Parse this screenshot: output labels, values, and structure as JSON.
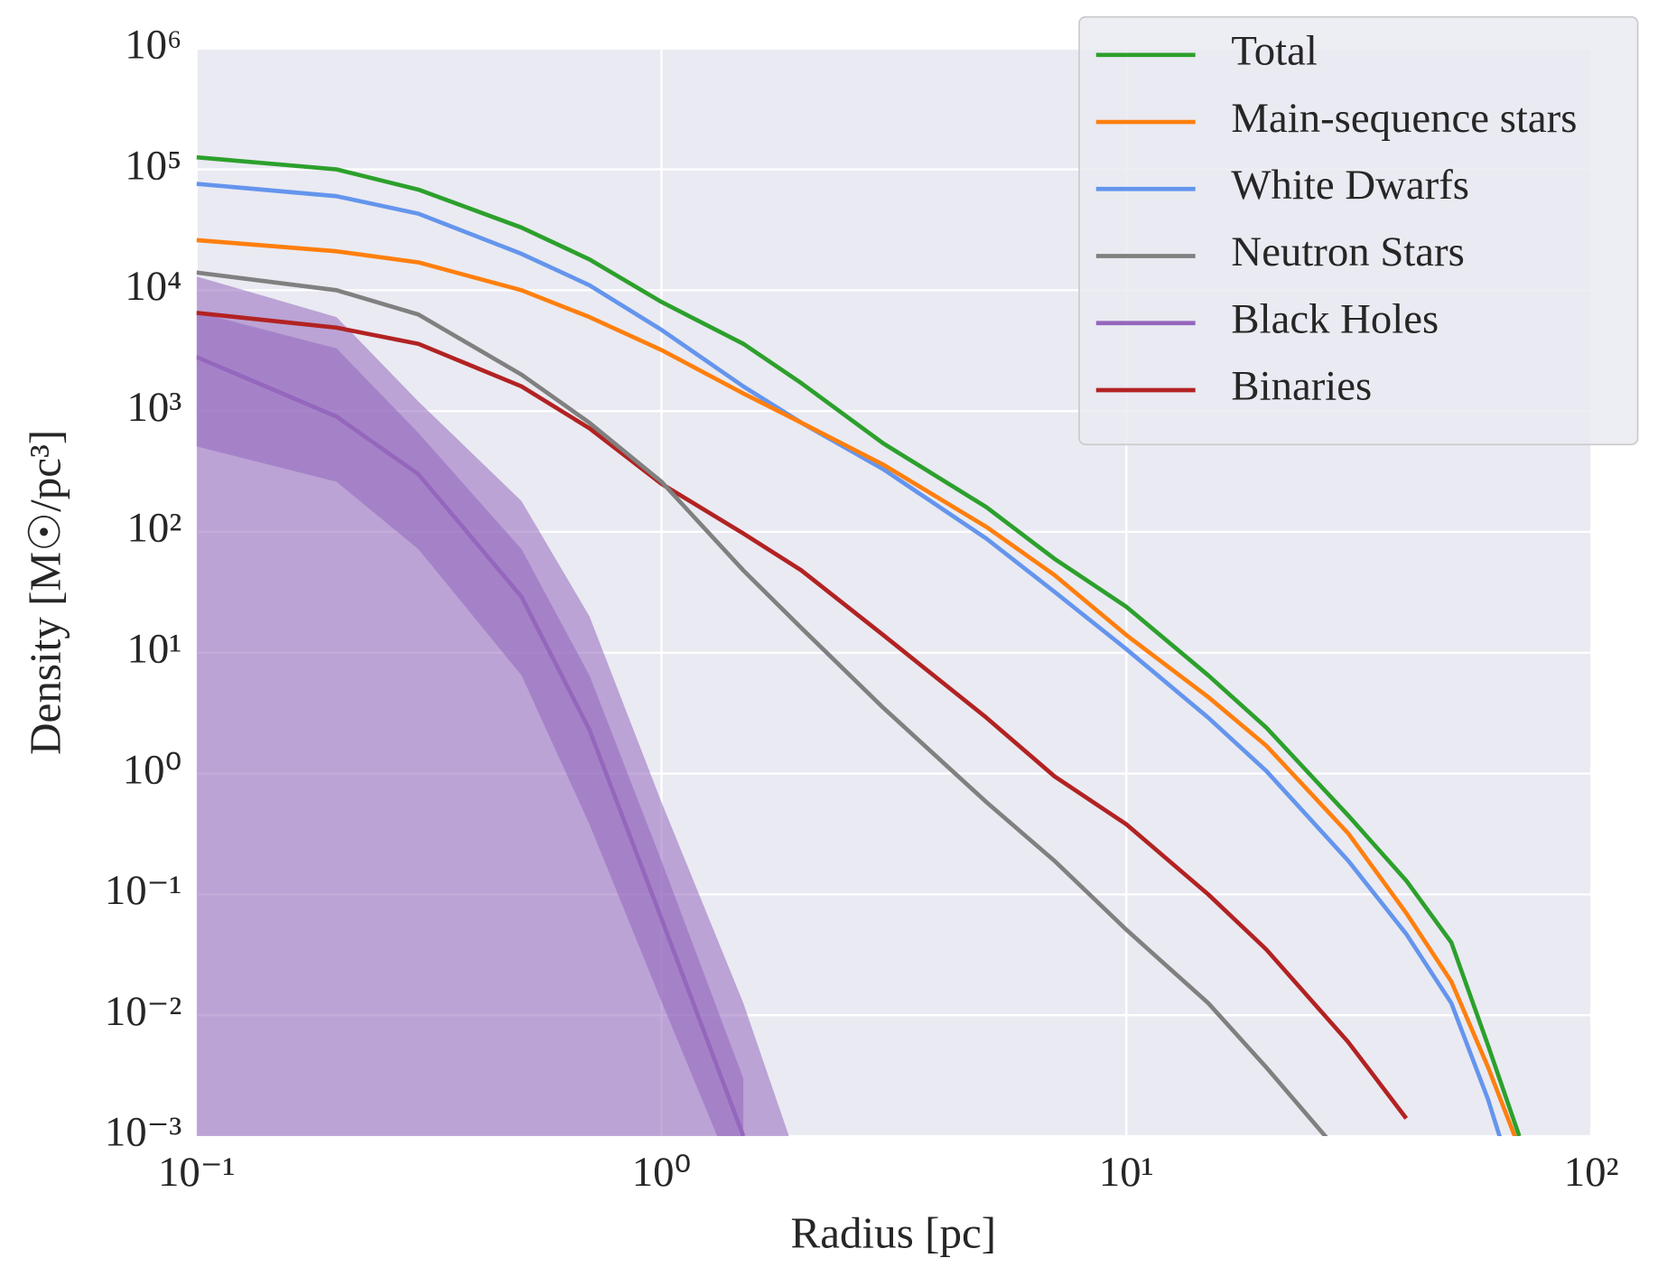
{
  "chart_data": {
    "type": "line",
    "x_label": "Radius [pc]",
    "y_label": "Density [M☉/pc³]",
    "x_log": true,
    "y_log": true,
    "grid": true,
    "legend": "upper right",
    "xlim": [
      0.1,
      100
    ],
    "ylim": [
      0.001,
      1000000
    ],
    "xticks": [
      {
        "value": 0.1,
        "label": "10⁻¹"
      },
      {
        "value": 1,
        "label": "10⁰"
      },
      {
        "value": 10,
        "label": "10¹"
      },
      {
        "value": 100,
        "label": "10²"
      }
    ],
    "yticks": [
      {
        "value": 0.001,
        "label": "10⁻³"
      },
      {
        "value": 0.01,
        "label": "10⁻²"
      },
      {
        "value": 0.1,
        "label": "10⁻¹"
      },
      {
        "value": 1,
        "label": "10⁰"
      },
      {
        "value": 10,
        "label": "10¹"
      },
      {
        "value": 100,
        "label": "10²"
      },
      {
        "value": 1000,
        "label": "10³"
      },
      {
        "value": 10000,
        "label": "10⁴"
      },
      {
        "value": 100000,
        "label": "10⁵"
      },
      {
        "value": 1000000,
        "label": "10⁶"
      }
    ],
    "x": [
      0.1,
      0.2,
      0.3,
      0.5,
      0.7,
      1,
      1.5,
      2,
      3,
      5,
      7,
      10,
      15,
      20,
      30,
      40,
      50,
      60,
      70
    ],
    "series": [
      {
        "name": "Total",
        "color": "#2ca02c",
        "values": [
          126000,
          100000,
          68000,
          33000,
          18000,
          8000,
          3600,
          1700,
          540,
          160,
          60,
          24,
          6.5,
          2.4,
          0.45,
          0.13,
          0.04,
          0.0056,
          0.001
        ]
      },
      {
        "name": "Main-sequence stars",
        "color": "#ff7f0e",
        "values": [
          26000,
          21000,
          17000,
          10000,
          6000,
          3200,
          1400,
          800,
          360,
          110,
          44,
          14,
          4.3,
          1.7,
          0.32,
          0.07,
          0.019,
          0.0037,
          0.0008
        ]
      },
      {
        "name": "White Dwarfs",
        "color": "#6495ed",
        "values": [
          76000,
          60000,
          43000,
          20000,
          11000,
          4700,
          1600,
          800,
          330,
          88,
          32,
          10.7,
          2.9,
          1.05,
          0.19,
          0.047,
          0.0126,
          0.002,
          0.0003
        ]
      },
      {
        "name": "Neutron Stars",
        "color": "#808080",
        "values": [
          14000,
          10000,
          6300,
          2000,
          800,
          260,
          48,
          16,
          3.5,
          0.58,
          0.19,
          0.051,
          0.0126,
          0.0037,
          0.0006,
          null,
          null,
          null,
          null
        ]
      },
      {
        "name": "Black Holes",
        "color": "#9467bd",
        "values": [
          2800,
          900,
          300,
          29,
          2.3,
          0.063,
          0.001,
          null,
          null,
          null,
          null,
          null,
          null,
          null,
          null,
          null,
          null,
          null,
          null
        ],
        "inner_lower": [
          510,
          260,
          72,
          6.5,
          0.38,
          0.013,
          0.0003,
          null,
          null,
          null,
          null,
          null,
          null,
          null,
          null,
          null,
          null,
          null,
          null
        ],
        "inner_upper": [
          6600,
          3300,
          660,
          72,
          6.5,
          0.19,
          0.003,
          null,
          null,
          null,
          null,
          null,
          null,
          null,
          null,
          null,
          null,
          null,
          null
        ],
        "outer_lower": [
          0.001,
          0.001,
          0.001,
          0.001,
          0.001,
          0.001,
          0.001,
          0.001,
          null,
          null,
          null,
          null,
          null,
          null,
          null,
          null,
          null,
          null,
          null
        ],
        "outer_upper": [
          13000,
          6000,
          1200,
          180,
          20,
          0.58,
          0.0126,
          0.0005,
          null,
          null,
          null,
          null,
          null,
          null,
          null,
          null,
          null,
          null,
          null
        ]
      },
      {
        "name": "Binaries",
        "color": "#b22222",
        "values": [
          6500,
          4900,
          3600,
          1600,
          720,
          250,
          97,
          48,
          14,
          2.9,
          0.95,
          0.38,
          0.1,
          0.035,
          0.006,
          0.0014,
          null,
          null,
          null
        ]
      }
    ]
  }
}
